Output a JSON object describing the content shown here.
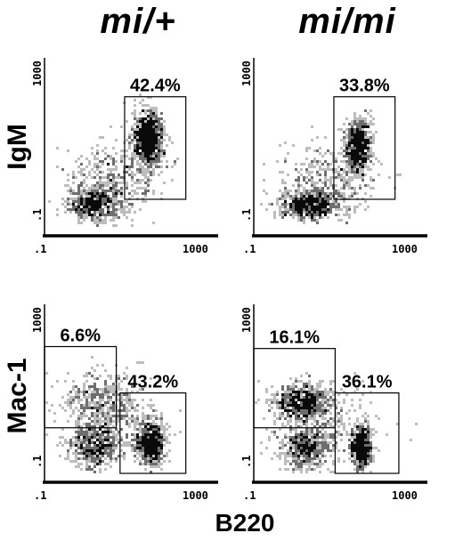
{
  "column_titles": [
    "mi/+",
    "mi/mi"
  ],
  "row_labels": [
    "IgM",
    "Mac-1"
  ],
  "x_axis_title": "B220",
  "colors": {
    "dense": "#0a0a0a",
    "medium": "#6e6e6e",
    "light": "#bdbdbd",
    "axis": "#000000"
  },
  "chart_data": [
    {
      "type": "heatmap",
      "genotype": "mi/+",
      "x_marker": "B220",
      "y_marker": "IgM",
      "xlim": [
        0.1,
        1000
      ],
      "ylim": [
        0.1,
        1000
      ],
      "log_scale": true,
      "x_ticks": [
        ".1",
        "1000"
      ],
      "y_ticks": [
        ".1",
        "1000"
      ],
      "populations": [
        {
          "x": 1.4,
          "y": 0.35,
          "sx": 0.3,
          "sy": 0.2,
          "n": 520
        },
        {
          "x": 25,
          "y": 12,
          "sx": 0.18,
          "sy": 0.32,
          "n": 950
        },
        {
          "x": 4,
          "y": 1.2,
          "sx": 0.55,
          "sy": 0.45,
          "n": 380
        }
      ],
      "gates": [
        {
          "label": "42.4%",
          "percent": 42.4,
          "x": [
            7,
            180
          ],
          "y": [
            0.45,
            120
          ]
        }
      ]
    },
    {
      "type": "heatmap",
      "genotype": "mi/mi",
      "x_marker": "B220",
      "y_marker": "IgM",
      "xlim": [
        0.1,
        1000
      ],
      "ylim": [
        0.1,
        1000
      ],
      "log_scale": true,
      "x_ticks": [
        ".1",
        "1000"
      ],
      "y_ticks": [
        ".1",
        "1000"
      ],
      "populations": [
        {
          "x": 1.8,
          "y": 0.32,
          "sx": 0.35,
          "sy": 0.16,
          "n": 620
        },
        {
          "x": 26,
          "y": 8,
          "sx": 0.15,
          "sy": 0.32,
          "n": 700
        },
        {
          "x": 5,
          "y": 1.3,
          "sx": 0.55,
          "sy": 0.45,
          "n": 380
        }
      ],
      "gates": [
        {
          "label": "33.8%",
          "percent": 33.8,
          "x": [
            7,
            180
          ],
          "y": [
            0.45,
            120
          ]
        }
      ]
    },
    {
      "type": "heatmap",
      "genotype": "mi/+",
      "x_marker": "B220",
      "y_marker": "Mac-1",
      "xlim": [
        0.1,
        1000
      ],
      "ylim": [
        0.1,
        1000
      ],
      "log_scale": true,
      "x_ticks": [
        ".1",
        "1000"
      ],
      "y_ticks": [
        ".1",
        "1000"
      ],
      "populations": [
        {
          "x": 1.4,
          "y": 0.45,
          "sx": 0.28,
          "sy": 0.28,
          "n": 480
        },
        {
          "x": 1.6,
          "y": 6,
          "sx": 0.45,
          "sy": 0.3,
          "n": 300
        },
        {
          "x": 28,
          "y": 0.5,
          "sx": 0.17,
          "sy": 0.28,
          "n": 650
        },
        {
          "x": 4,
          "y": 1.5,
          "sx": 0.55,
          "sy": 0.5,
          "n": 300
        }
      ],
      "gates": [
        {
          "label": "6.6%",
          "percent": 6.6,
          "x": [
            0.1,
            4.5
          ],
          "y": [
            1.2,
            100
          ]
        },
        {
          "label": "43.2%",
          "percent": 43.2,
          "x": [
            5.5,
            180
          ],
          "y": [
            0.1,
            8
          ]
        }
      ]
    },
    {
      "type": "heatmap",
      "genotype": "mi/mi",
      "x_marker": "B220",
      "y_marker": "Mac-1",
      "xlim": [
        0.1,
        1000
      ],
      "ylim": [
        0.1,
        1000
      ],
      "log_scale": true,
      "x_ticks": [
        ".1",
        "1000"
      ],
      "y_ticks": [
        ".1",
        "1000"
      ],
      "populations": [
        {
          "x": 1.3,
          "y": 5,
          "sx": 0.35,
          "sy": 0.22,
          "n": 600
        },
        {
          "x": 1.5,
          "y": 0.4,
          "sx": 0.32,
          "sy": 0.28,
          "n": 480
        },
        {
          "x": 30,
          "y": 0.4,
          "sx": 0.12,
          "sy": 0.26,
          "n": 560
        },
        {
          "x": 4,
          "y": 1.5,
          "sx": 0.55,
          "sy": 0.5,
          "n": 280
        }
      ],
      "gates": [
        {
          "label": "16.1%",
          "percent": 16.1,
          "x": [
            0.1,
            7.5
          ],
          "y": [
            1.2,
            90
          ]
        },
        {
          "label": "36.1%",
          "percent": 36.1,
          "x": [
            7.5,
            220
          ],
          "y": [
            0.1,
            8
          ]
        }
      ]
    }
  ]
}
